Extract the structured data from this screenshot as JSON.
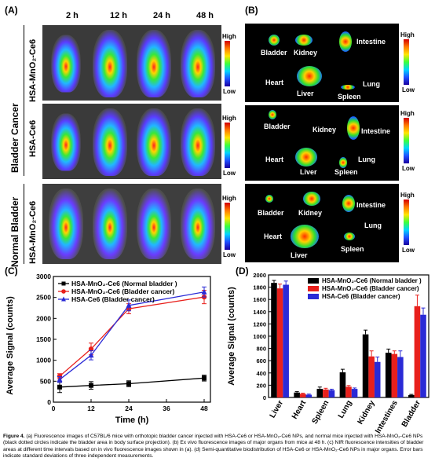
{
  "panels": {
    "a": {
      "label": "(A)",
      "times": [
        "2 h",
        "12 h",
        "24 h",
        "48 h"
      ],
      "groups": [
        "Bladder Cancer",
        "Normal Bladder"
      ],
      "rows": [
        "HSA-MnO₂-Ce6",
        "HSA-Ce6",
        "HSA-MnO₂-Ce6"
      ],
      "scale_high": "High",
      "scale_low": "Low"
    },
    "b": {
      "label": "(B)",
      "organs": [
        "Bladder",
        "Kidney",
        "Intestine",
        "Heart",
        "Liver",
        "Lung",
        "Spleen"
      ],
      "scale_high": "High",
      "scale_low": "Low"
    },
    "c": {
      "label": "(C)"
    },
    "d": {
      "label": "(D)"
    }
  },
  "chart_data": [
    {
      "type": "line",
      "xlabel": "Time (h)",
      "ylabel": "Average Signal (counts)",
      "x": [
        2,
        12,
        24,
        48
      ],
      "xticks": [
        0,
        12,
        24,
        36,
        48
      ],
      "xlim": [
        0,
        50
      ],
      "yticks": [
        0,
        500,
        1000,
        1500,
        2000,
        2500,
        3000
      ],
      "ylim": [
        0,
        3000
      ],
      "legend": "top-left",
      "series": [
        {
          "name": "HSA-MnO₂-Ce6 (Normal bladder )",
          "color": "#000000",
          "marker": "square",
          "values": [
            360,
            400,
            440,
            575
          ],
          "errors": [
            130,
            90,
            70,
            70
          ]
        },
        {
          "name": "HSA-MnO₂-Ce6 (Bladder cancer)",
          "color": "#e8201c",
          "marker": "circle",
          "values": [
            620,
            1270,
            2230,
            2510
          ],
          "errors": [
            60,
            140,
            120,
            160
          ]
        },
        {
          "name": "HSA-Ce6 (Bladder cancer)",
          "color": "#2a2ad6",
          "marker": "triangle",
          "values": [
            540,
            1120,
            2310,
            2630
          ],
          "errors": [
            70,
            110,
            130,
            120
          ]
        }
      ]
    },
    {
      "type": "bar",
      "ylabel": "Average Signal (counts)",
      "categories": [
        "Liver",
        "Heart",
        "Spleen",
        "Lung",
        "Kidney",
        "Intestines",
        "Bladder"
      ],
      "yticks": [
        0,
        200,
        400,
        600,
        800,
        1000,
        1200,
        1400,
        1600,
        1800,
        2000
      ],
      "ylim": [
        0,
        2000
      ],
      "legend": "top-right",
      "series": [
        {
          "name": "HSA-MnO₂-Ce6 (Normal bladder )",
          "color": "#000000",
          "values": [
            1870,
            80,
            140,
            410,
            1030,
            730,
            40
          ],
          "errors": [
            40,
            15,
            30,
            50,
            70,
            60,
            10
          ]
        },
        {
          "name": "HSA-MnO₂-Ce6 (Bladder cancer)",
          "color": "#e8201c",
          "values": [
            1780,
            60,
            130,
            175,
            670,
            710,
            1490
          ],
          "errors": [
            70,
            10,
            20,
            20,
            90,
            50,
            180
          ]
        },
        {
          "name": "HSA-Ce6 (Bladder cancer)",
          "color": "#2a2ad6",
          "values": [
            1840,
            45,
            120,
            140,
            580,
            660,
            1350
          ],
          "errors": [
            60,
            10,
            15,
            15,
            80,
            100,
            110
          ]
        }
      ]
    }
  ],
  "caption": {
    "fig": "Figure 4.",
    "text": " (a) Fluorescence images of C57BL/6 mice with orthotopic bladder cancer injected with HSA-Ce6 or HSA-MnO₂-Ce6 NPs, and normal mice injected with HSA-MnO₂-Ce6 NPs (black dotted circles indicate the bladder area in body surface projection). (b) Ex vivo fluorescence images of major organs from mice at 48 h. (c) NIR fluorescence intensities of bladder areas at different time intervals based on in vivo fluorescence images shown in (a). (d) Semi-quantitative biodistribution of HSA-Ce6 or HSA-MnO₂-Ce6 NPs in major organs. Error bars indicate standard deviations of three independent measurements."
  }
}
